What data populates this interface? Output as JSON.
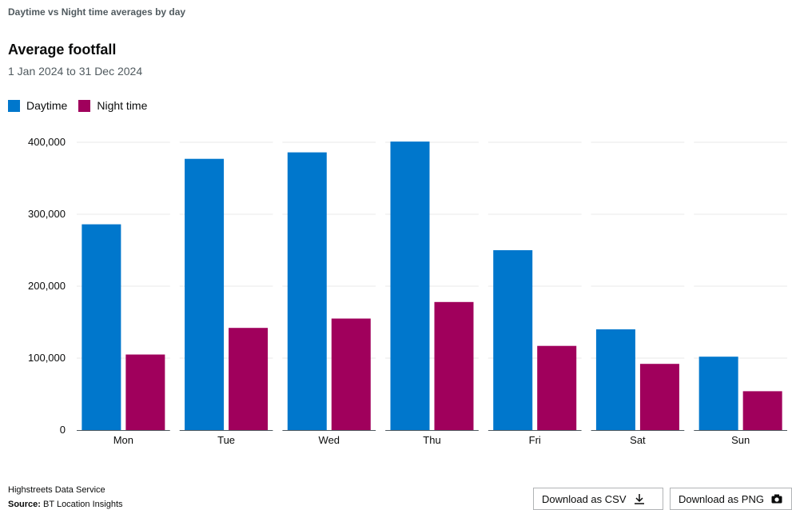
{
  "header": {
    "kicker": "Daytime vs Night time averages by day",
    "title": "Average footfall",
    "subtitle": "1 Jan 2024 to 31 Dec 2024"
  },
  "legend": [
    {
      "label": "Daytime",
      "color": "#0077cc"
    },
    {
      "label": "Night time",
      "color": "#a0005c"
    }
  ],
  "footer": {
    "org": "Highstreets Data Service",
    "source_label": "Source:",
    "source_value": "BT Location Insights",
    "download_csv": "Download as CSV",
    "download_png": "Download as PNG",
    "download_csv_icon": "download-icon",
    "download_png_icon": "camera-icon"
  },
  "chart_data": {
    "type": "bar",
    "categories": [
      "Mon",
      "Tue",
      "Wed",
      "Thu",
      "Fri",
      "Sat",
      "Sun"
    ],
    "series": [
      {
        "name": "Daytime",
        "color": "#0077cc",
        "values": [
          286000,
          377000,
          386000,
          401000,
          250000,
          140000,
          102000
        ]
      },
      {
        "name": "Night time",
        "color": "#a0005c",
        "values": [
          105000,
          142000,
          155000,
          178000,
          117000,
          92000,
          54000
        ]
      }
    ],
    "yticks": [
      0,
      100000,
      200000,
      300000,
      400000
    ],
    "ytick_labels": [
      "0",
      "100,000",
      "200,000",
      "300,000",
      "400,000"
    ],
    "ylim": [
      0,
      400000
    ],
    "grid": true,
    "legend_position": "top-left"
  }
}
